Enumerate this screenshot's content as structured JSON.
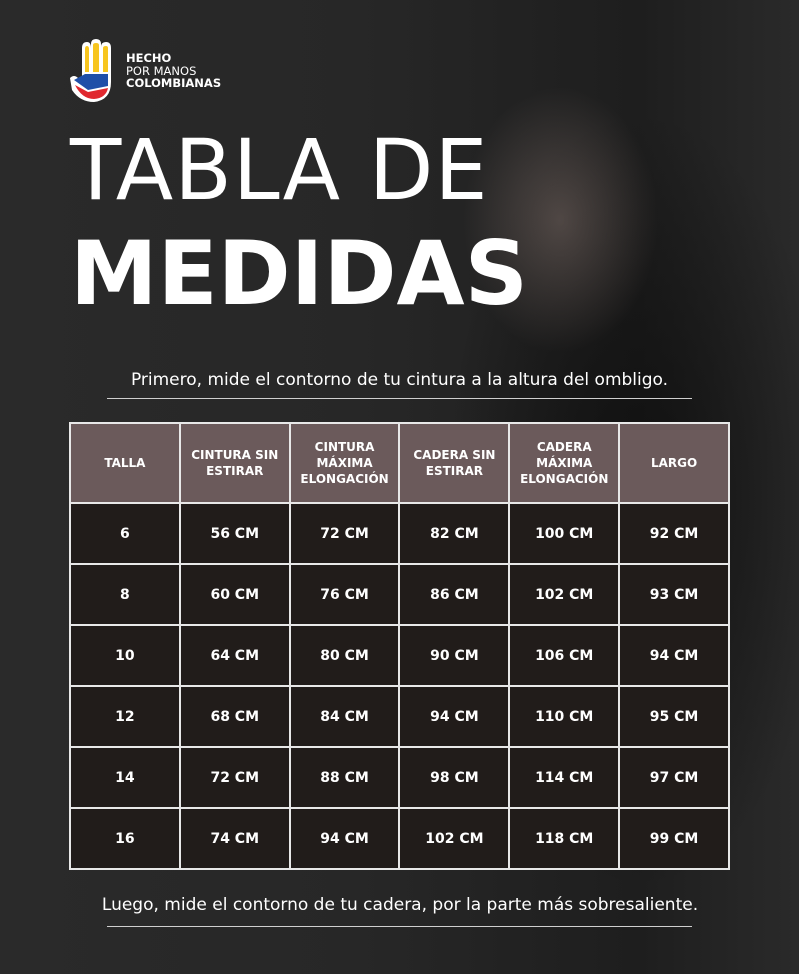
{
  "logo": {
    "line1": "HECHO",
    "line2": "POR MANOS",
    "line3": "COLOMBIANAS",
    "icon": "colombian-flag-hand-icon"
  },
  "title": {
    "line1": "TABLA DE",
    "line2": "MEDIDAS"
  },
  "instruction_top": "Primero, mide  el contorno de tu cintura a la altura del ombligo.",
  "instruction_bottom": "Luego, mide el contorno de tu cadera, por la parte más sobresaliente.",
  "table": {
    "headers": [
      "TALLA",
      "CINTURA SIN ESTIRAR",
      "CINTURA MÁXIMA ELONGACIÓN",
      "CADERA SIN ESTIRAR",
      "CADERA MÁXIMA ELONGACIÓN",
      "LARGO"
    ],
    "rows": [
      [
        "6",
        "56 CM",
        "72 CM",
        "82 CM",
        "100 CM",
        "92 CM"
      ],
      [
        "8",
        "60 CM",
        "76 CM",
        "86 CM",
        "102 CM",
        "93 CM"
      ],
      [
        "10",
        "64 CM",
        "80 CM",
        "90 CM",
        "106 CM",
        "94 CM"
      ],
      [
        "12",
        "68 CM",
        "84 CM",
        "94 CM",
        "110 CM",
        "95 CM"
      ],
      [
        "14",
        "72 CM",
        "88 CM",
        "98 CM",
        "114 CM",
        "97 CM"
      ],
      [
        "16",
        "74 CM",
        "94 CM",
        "102 CM",
        "118 CM",
        "99 CM"
      ]
    ]
  },
  "colors": {
    "header_bg": "#6b5a5b",
    "row_bg": "#211c1a",
    "border": "#e8e8e8",
    "flag_yellow": "#f7c51e",
    "flag_blue": "#1f4fa8",
    "flag_red": "#e0282e"
  }
}
